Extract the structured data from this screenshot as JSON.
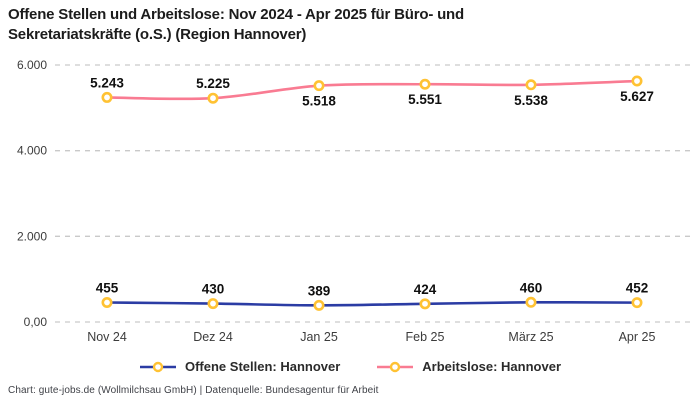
{
  "title": "Offene Stellen und Arbeitslose: Nov 2024 - Apr 2025 für Büro- und\nSekretariatskräfte (o.S.) (Region Hannover)",
  "footer": "Chart: gute-jobs.de (Wollmilchsau GmbH) | Datenquelle: Bundesagentur für Arbeit",
  "colors": {
    "offene": "#2B3CA4",
    "arbeitslose": "#F97B92",
    "marker": "#FFC233",
    "grid": "#C9C9C9"
  },
  "chart_data": {
    "type": "line",
    "categories": [
      "Nov 24",
      "Dez 24",
      "Jan 25",
      "Feb 25",
      "März 25",
      "Apr 25"
    ],
    "series": [
      {
        "name": "Offene Stellen: Hannover",
        "color_key": "offene",
        "values": [
          455,
          430,
          389,
          424,
          460,
          452
        ],
        "labels": [
          "455",
          "430",
          "389",
          "424",
          "460",
          "452"
        ],
        "label_positions": [
          "above",
          "above",
          "above",
          "above",
          "above",
          "above"
        ]
      },
      {
        "name": "Arbeitslose: Hannover",
        "color_key": "arbeitslose",
        "values": [
          5243,
          5225,
          5518,
          5551,
          5538,
          5627
        ],
        "labels": [
          "5.243",
          "5.225",
          "5.518",
          "5.551",
          "5.538",
          "5.627"
        ],
        "label_positions": [
          "above",
          "above",
          "below",
          "below",
          "below",
          "below"
        ]
      }
    ],
    "y_ticks": [
      {
        "value": 0,
        "label": "0,00"
      },
      {
        "value": 2000,
        "label": "2.000"
      },
      {
        "value": 4000,
        "label": "4.000"
      },
      {
        "value": 6000,
        "label": "6.000"
      }
    ],
    "ylim": [
      0,
      6000
    ],
    "grid": "dashed-horizontal",
    "legend_position": "bottom",
    "marker_style": "ring"
  }
}
